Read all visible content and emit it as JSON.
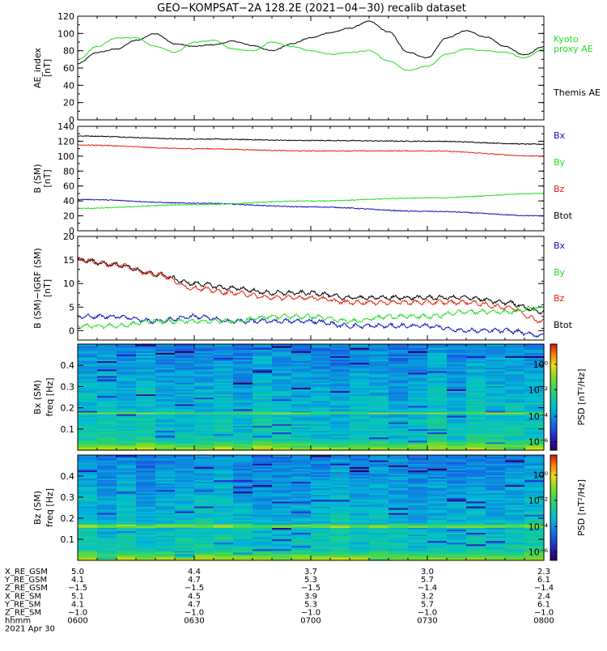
{
  "title": "GEO−KOMPSAT−2A 128.2E (2021−04−30) recalib dataset",
  "colors": {
    "black": "#000000",
    "green": "#22dd22",
    "red": "#e8200e",
    "blue": "#1010c0"
  },
  "chart_data": [
    {
      "type": "line",
      "ylabel": "AE index [nT]",
      "ylim": [
        0,
        120
      ],
      "yticks": [
        "0",
        "20",
        "40",
        "60",
        "80",
        "100",
        "120"
      ],
      "legend": [
        {
          "text": "Kyoto proxy AE",
          "lines": [
            "Kyoto",
            "proxy AE"
          ],
          "color": "#22dd22"
        },
        {
          "text": "Themis AE",
          "lines": [
            "Themis AE"
          ],
          "color": "#000000"
        }
      ],
      "x_minutes": [
        0,
        5,
        10,
        15,
        20,
        25,
        30,
        35,
        40,
        45,
        50,
        55,
        60,
        65,
        70,
        75,
        80,
        85,
        90,
        95,
        100,
        105,
        110,
        115,
        120
      ],
      "series": [
        {
          "name": "Themis AE",
          "color": "#000000",
          "values": [
            65,
            78,
            82,
            92,
            100,
            88,
            85,
            87,
            91,
            86,
            80,
            88,
            95,
            101,
            106,
            114,
            102,
            78,
            72,
            95,
            103,
            96,
            85,
            75,
            85
          ]
        },
        {
          "name": "Kyoto proxy AE",
          "color": "#22dd22",
          "values": [
            70,
            85,
            95,
            95,
            85,
            78,
            90,
            92,
            82,
            80,
            90,
            85,
            80,
            76,
            78,
            80,
            68,
            57,
            62,
            76,
            82,
            80,
            78,
            72,
            82
          ]
        }
      ]
    },
    {
      "type": "line",
      "ylabel": "B (SM) [nT]",
      "ylim": [
        0,
        140
      ],
      "yticks": [
        "0",
        "20",
        "40",
        "60",
        "80",
        "100",
        "120",
        "140"
      ],
      "legend": [
        {
          "text": "Bx",
          "lines": [
            "Bx"
          ],
          "color": "#1010c0"
        },
        {
          "text": "By",
          "lines": [
            "By"
          ],
          "color": "#22dd22"
        },
        {
          "text": "Bz",
          "lines": [
            "Bz"
          ],
          "color": "#e8200e"
        },
        {
          "text": "Btot",
          "lines": [
            "Btot"
          ],
          "color": "#000000"
        }
      ],
      "x_minutes": [
        0,
        30,
        60,
        90,
        120
      ],
      "series": [
        {
          "name": "Btot",
          "color": "#000000",
          "values": [
            127,
            123,
            121,
            120,
            116
          ]
        },
        {
          "name": "Bz",
          "color": "#e8200e",
          "values": [
            115,
            110,
            107,
            107,
            100
          ]
        },
        {
          "name": "Bx",
          "color": "#1010c0",
          "values": [
            42,
            37,
            32,
            26,
            20
          ]
        },
        {
          "name": "By",
          "color": "#22dd22",
          "values": [
            30,
            35,
            40,
            44,
            50
          ]
        }
      ]
    },
    {
      "type": "line",
      "ylabel": "B (SM)−IGRF (SM) [nT]",
      "ylim": [
        -2,
        20
      ],
      "yticks": [
        "0",
        "5",
        "10",
        "15",
        "20"
      ],
      "legend": [
        {
          "text": "Bx",
          "lines": [
            "Bx"
          ],
          "color": "#1010c0"
        },
        {
          "text": "By",
          "lines": [
            "By"
          ],
          "color": "#22dd22"
        },
        {
          "text": "Bz",
          "lines": [
            "Bz"
          ],
          "color": "#e8200e"
        },
        {
          "text": "Btot",
          "lines": [
            "Btot"
          ],
          "color": "#000000"
        }
      ],
      "x_minutes": [
        0,
        10,
        20,
        30,
        40,
        50,
        60,
        70,
        80,
        90,
        100,
        110,
        120
      ],
      "series": [
        {
          "name": "Btot",
          "color": "#000000",
          "values": [
            15,
            14,
            12,
            10,
            9,
            8,
            8,
            7,
            7,
            7,
            7,
            6,
            4
          ]
        },
        {
          "name": "Bz",
          "color": "#e8200e",
          "values": [
            15,
            14,
            12,
            9,
            8,
            7,
            7,
            6,
            6,
            6,
            6,
            5,
            2
          ]
        },
        {
          "name": "Bx",
          "color": "#1010c0",
          "values": [
            3,
            3,
            2,
            3,
            2,
            2,
            2,
            1,
            1,
            1,
            0,
            0,
            -1
          ]
        },
        {
          "name": "By",
          "color": "#22dd22",
          "values": [
            1,
            1,
            2,
            2,
            2,
            3,
            3,
            2,
            3,
            3,
            4,
            4,
            5
          ]
        }
      ]
    },
    {
      "type": "heatmap",
      "ylabel": "Bx (SM) freq [Hz]",
      "ylim": [
        0,
        0.5
      ],
      "yticks": [
        "0.1",
        "0.2",
        "0.3",
        "0.4"
      ],
      "colorbar_label": "PSD [nT²/Hz]",
      "colorbar_ticks": [
        "10⁰",
        "10⁻²",
        "10⁻⁴",
        "10⁻⁶"
      ],
      "band_hz": 0.175
    },
    {
      "type": "heatmap",
      "ylabel": "Bz (SM) freq [Hz]",
      "ylim": [
        0,
        0.5
      ],
      "yticks": [
        "0.1",
        "0.2",
        "0.3",
        "0.4"
      ],
      "colorbar_label": "PSD [nT²/Hz]",
      "colorbar_ticks": [
        "10⁰",
        "10⁻²",
        "10⁻⁴",
        "10⁻⁶"
      ],
      "band_hz": 0.165
    }
  ],
  "orbit_table": {
    "row_labels": [
      "X_RE_GSM",
      "Y_RE_GSM",
      "Z_RE_GSM",
      "X_RE_SM",
      "Y_RE_SM",
      "Z_RE_SM",
      "hhmm"
    ],
    "columns": [
      [
        "5.0",
        "4.1",
        "−1.5",
        "5.1",
        "4.1",
        "−1.0",
        "0600"
      ],
      [
        "4.4",
        "4.7",
        "−1.5",
        "4.5",
        "4.7",
        "−1.0",
        "0630"
      ],
      [
        "3.7",
        "5.3",
        "−1.5",
        "3.9",
        "5.3",
        "−1.0",
        "0700"
      ],
      [
        "3.0",
        "5.7",
        "−1.4",
        "3.2",
        "5.7",
        "−1.0",
        "0730"
      ],
      [
        "2.3",
        "6.1",
        "−1.4",
        "2.4",
        "6.1",
        "−1.0",
        "0800"
      ]
    ],
    "date": "2021 Apr 30"
  }
}
